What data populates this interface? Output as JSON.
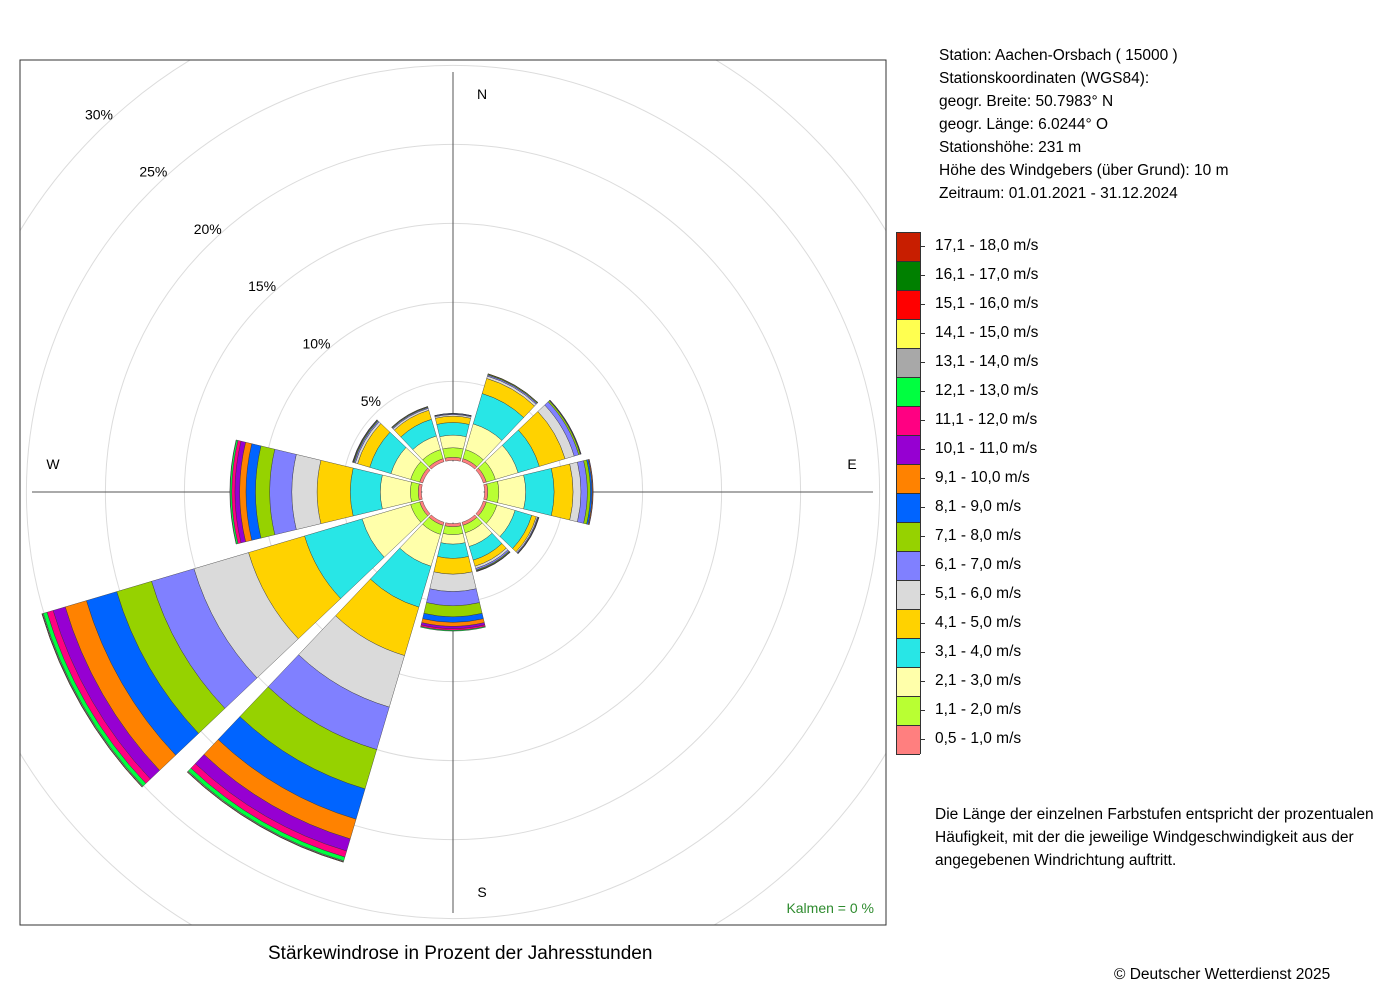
{
  "station": {
    "station": "Station:  Aachen-Orsbach  ( 15000 )",
    "coords_title": "Stationskoordinaten (WGS84):",
    "lat": "geogr. Breite: 50.7983° N",
    "lon": "geogr. Länge:   6.0244° O",
    "altitude": "Stationshöhe: 231 m",
    "anemometer": "Höhe des Windgebers (über Grund): 10 m",
    "period": "Zeitraum: 01.01.2021 - 31.12.2024"
  },
  "note": "Die Länge der einzelnen Farbstufen entspricht der prozentualen Häufigkeit, mit der die jeweilige Windgeschwindigkeit aus der angegebenen Windrichtung auftritt.",
  "caption": "Stärkewindrose in Prozent der Jahresstunden",
  "copyright": "© Deutscher Wetterdienst  2025",
  "chart_data": {
    "type": "wind-rose",
    "title": "Stärkewindrose in Prozent der Jahresstunden",
    "radial_unit": "%",
    "radial_ticks": [
      "5%",
      "10%",
      "15%",
      "20%",
      "25%",
      "30%"
    ],
    "radial_tick_values": [
      5,
      10,
      15,
      20,
      25,
      30
    ],
    "calm_offset_pct": 2,
    "calm_label": "Kalmen  =  0 %",
    "directions_shown": [
      "N",
      "E",
      "S",
      "W"
    ],
    "sectors_deg": [
      0,
      30,
      60,
      90,
      120,
      150,
      180,
      210,
      240,
      270,
      300,
      330
    ],
    "speed_classes": [
      {
        "label": "0,5 - 1,0 m/s",
        "color": "#FF7F7F"
      },
      {
        "label": "1,1 - 2,0 m/s",
        "color": "#B9FF33"
      },
      {
        "label": "2,1 - 3,0 m/s",
        "color": "#FFFFAA"
      },
      {
        "label": "3,1 - 4,0 m/s",
        "color": "#28E6E6"
      },
      {
        "label": "4,1 - 5,0 m/s",
        "color": "#FFD200"
      },
      {
        "label": "5,1 - 6,0 m/s",
        "color": "#DADADA"
      },
      {
        "label": "6,1 - 7,0 m/s",
        "color": "#8080FF"
      },
      {
        "label": "7,1 - 8,0 m/s",
        "color": "#96D200"
      },
      {
        "label": "8,1 - 9,0 m/s",
        "color": "#0064FF"
      },
      {
        "label": "9,1 - 10,0 m/s",
        "color": "#FF8200"
      },
      {
        "label": "10,1 - 11,0 m/s",
        "color": "#9600D2"
      },
      {
        "label": "11,1 - 12,0 m/s",
        "color": "#FF0082"
      },
      {
        "label": "12,1 - 13,0 m/s",
        "color": "#00FF40"
      },
      {
        "label": "13,1 - 14,0 m/s",
        "color": "#A8A8A8"
      },
      {
        "label": "14,1 - 15,0 m/s",
        "color": "#FFFF50"
      },
      {
        "label": "15,1 - 16,0 m/s",
        "color": "#FF0000"
      },
      {
        "label": "16,1 - 17,0 m/s",
        "color": "#008000"
      },
      {
        "label": "17,1 - 18,0 m/s",
        "color": "#C81E00"
      }
    ],
    "series": [
      {
        "direction_deg": 0,
        "values": [
          0.2,
          0.6,
          0.8,
          0.8,
          0.4,
          0.1,
          0.05,
          0.02,
          0.01,
          0,
          0,
          0,
          0,
          0,
          0,
          0,
          0,
          0
        ]
      },
      {
        "direction_deg": 30,
        "values": [
          0.2,
          0.6,
          1.7,
          2.0,
          1.0,
          0.15,
          0.08,
          0.05,
          0.02,
          0.01,
          0,
          0,
          0,
          0,
          0,
          0,
          0,
          0
        ]
      },
      {
        "direction_deg": 60,
        "values": [
          0.2,
          0.6,
          1.5,
          1.4,
          1.7,
          0.6,
          0.3,
          0.1,
          0.03,
          0.02,
          0.01,
          0,
          0,
          0,
          0,
          0,
          0,
          0
        ]
      },
      {
        "direction_deg": 90,
        "values": [
          0.2,
          0.7,
          1.7,
          1.8,
          1.2,
          0.5,
          0.4,
          0.2,
          0.1,
          0.05,
          0.02,
          0,
          0,
          0,
          0,
          0,
          0,
          0
        ]
      },
      {
        "direction_deg": 120,
        "values": [
          0.2,
          0.7,
          1.2,
          1.1,
          0.3,
          0.08,
          0.05,
          0.02,
          0.02,
          0.01,
          0,
          0,
          0,
          0,
          0,
          0,
          0,
          0
        ]
      },
      {
        "direction_deg": 150,
        "values": [
          0.2,
          0.5,
          0.9,
          0.9,
          0.4,
          0.15,
          0.1,
          0.05,
          0.03,
          0.02,
          0.01,
          0,
          0,
          0,
          0,
          0,
          0,
          0
        ]
      },
      {
        "direction_deg": 180,
        "values": [
          0.2,
          0.5,
          0.6,
          0.9,
          1.0,
          1.1,
          0.9,
          0.7,
          0.35,
          0.25,
          0.15,
          0.1,
          0.05,
          0,
          0,
          0,
          0,
          0
        ]
      },
      {
        "direction_deg": 210,
        "values": [
          0.2,
          0.6,
          2.1,
          2.7,
          3.2,
          3.4,
          2.8,
          2.6,
          2.0,
          1.3,
          0.8,
          0.4,
          0.25,
          0.05,
          0.03,
          0.01,
          0,
          0
        ]
      },
      {
        "direction_deg": 240,
        "values": [
          0.2,
          0.6,
          3.2,
          3.8,
          3.7,
          3.6,
          2.8,
          2.3,
          2.0,
          1.4,
          0.8,
          0.4,
          0.25,
          0.05,
          0.03,
          0.01,
          0,
          0
        ]
      },
      {
        "direction_deg": 270,
        "values": [
          0.2,
          0.5,
          1.9,
          1.9,
          2.1,
          1.6,
          1.4,
          0.9,
          0.6,
          0.4,
          0.3,
          0.2,
          0.1,
          0.02,
          0,
          0,
          0,
          0
        ]
      },
      {
        "direction_deg": 300,
        "values": [
          0.2,
          0.6,
          1.3,
          1.4,
          0.8,
          0.15,
          0.08,
          0.05,
          0.03,
          0.02,
          0.01,
          0,
          0,
          0,
          0,
          0,
          0,
          0
        ]
      },
      {
        "direction_deg": 330,
        "values": [
          0.2,
          0.6,
          0.9,
          1.1,
          0.6,
          0.12,
          0.06,
          0.04,
          0.02,
          0.01,
          0,
          0,
          0,
          0,
          0,
          0,
          0,
          0
        ]
      }
    ]
  }
}
